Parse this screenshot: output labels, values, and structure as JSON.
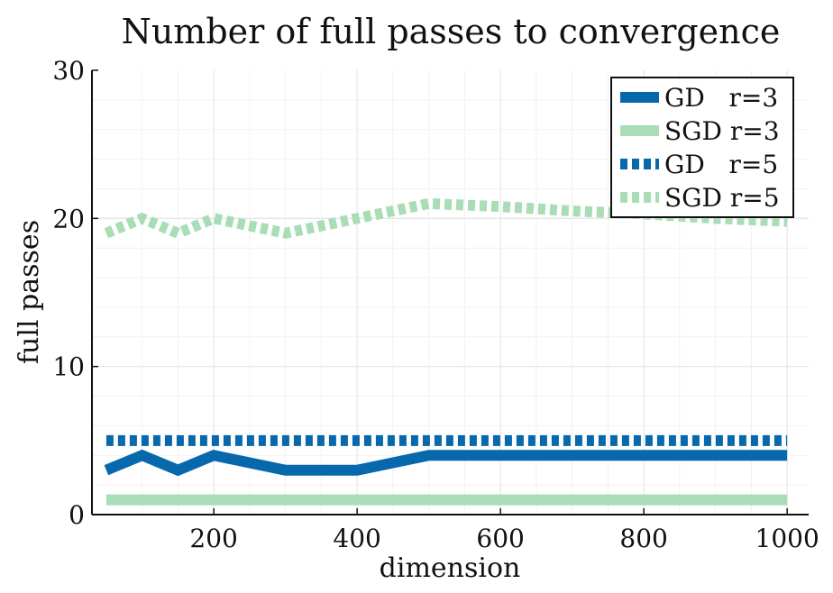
{
  "chart_data": {
    "type": "line",
    "title": "Number of full passes to convergence",
    "xlabel": "dimension",
    "ylabel": "full passes",
    "xlim": [
      30,
      1030
    ],
    "ylim": [
      0,
      30
    ],
    "xticks": [
      200,
      400,
      600,
      800,
      1000
    ],
    "yticks": [
      0,
      10,
      20,
      30
    ],
    "grid": true,
    "legend_position": "top-right",
    "series": [
      {
        "name": "GD   r=3",
        "color": "#0868ac",
        "style": "solid",
        "x": [
          50,
          100,
          150,
          200,
          300,
          400,
          500,
          600,
          700,
          800,
          900,
          1000
        ],
        "y": [
          3,
          4,
          3,
          4,
          3,
          3,
          4,
          4,
          4,
          4,
          4,
          4
        ]
      },
      {
        "name": "SGD r=3",
        "color": "#a8ddb5",
        "style": "solid",
        "x": [
          50,
          100,
          150,
          200,
          300,
          400,
          500,
          600,
          700,
          800,
          900,
          1000
        ],
        "y": [
          1,
          1,
          1,
          1,
          1,
          1,
          1,
          1,
          1,
          1,
          1,
          1
        ]
      },
      {
        "name": "GD   r=5",
        "color": "#0868ac",
        "style": "dotted",
        "x": [
          50,
          100,
          150,
          200,
          300,
          400,
          500,
          600,
          700,
          800,
          900,
          1000
        ],
        "y": [
          5,
          5,
          5,
          5,
          5,
          5,
          5,
          5,
          5,
          5,
          5,
          5
        ]
      },
      {
        "name": "SGD r=5",
        "color": "#a8ddb5",
        "style": "dotted",
        "x": [
          50,
          100,
          150,
          200,
          300,
          400,
          500,
          600,
          700,
          800,
          900,
          1000
        ],
        "y": [
          19,
          20,
          19,
          20,
          19,
          20,
          21,
          20.8,
          20.5,
          20.3,
          20.0,
          19.8
        ]
      }
    ]
  }
}
